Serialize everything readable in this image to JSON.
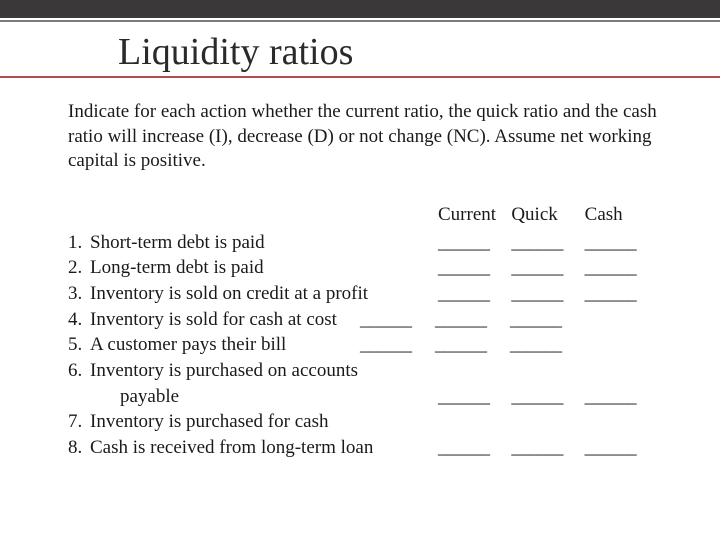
{
  "title": "Liquidity ratios",
  "intro": "Indicate for each action whether the current ratio, the quick ratio and the cash ratio will increase (I), decrease (D) or not change (NC). Assume net working capital is positive.",
  "headers": {
    "col1": "Current",
    "col2": "Quick",
    "col3": "Cash"
  },
  "blank": "______",
  "items": {
    "i1": {
      "num": "1.",
      "label": "Short-term debt is paid"
    },
    "i2": {
      "num": "2.",
      "label": "Long-term debt is paid"
    },
    "i3": {
      "num": "3.",
      "label": "Inventory is sold on credit at a profit"
    },
    "i4": {
      "num": "4.",
      "label": "Inventory is sold for cash at cost"
    },
    "i5": {
      "num": "5.",
      "label": "A customer pays their bill"
    },
    "i6": {
      "num": "6.",
      "label": "Inventory is purchased on accounts"
    },
    "i6b": {
      "label": "payable"
    },
    "i7": {
      "num": "7.",
      "label": "Inventory is purchased for cash"
    },
    "i8": {
      "num": "8.",
      "label": "Cash is received from long-term loan"
    }
  },
  "colors": {
    "top_bar": "#3a3838",
    "top_line": "#7c7a7a",
    "title_underline": "#b44b4b",
    "text": "#1a1a1a",
    "background": "#ffffff"
  },
  "typography": {
    "title_fontsize": 38,
    "body_fontsize": 19,
    "font_family": "Georgia, serif"
  }
}
